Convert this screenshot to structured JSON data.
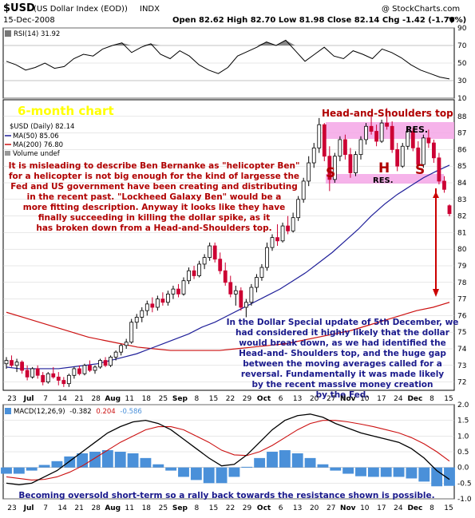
{
  "header": {
    "symbol": "$USD",
    "name": "(US Dollar Index (EOD))",
    "exchange": "INDX",
    "copyright": "@ StockCharts.com",
    "date": "15-Dec-2008",
    "quote": "Open 82.62  High 82.70  Low 81.98  Close 82.14  Chg -1.42 (-1.70%)",
    "quote_arrow": "▼"
  },
  "rsi_panel": {
    "label": "RSI(14) 31.92",
    "ticks": [
      "90",
      "70",
      "50",
      "30",
      "10"
    ]
  },
  "price_panel": {
    "legend": [
      "$USD (Daily) 82.14",
      "MA(50) 85.06",
      "MA(200) 76.80",
      "Volume undef"
    ],
    "ticks": [
      "88",
      "87",
      "86",
      "85",
      "84",
      "83",
      "82",
      "81",
      "80",
      "79",
      "78",
      "77",
      "76",
      "75",
      "74",
      "73",
      "72"
    ],
    "six_month": "6-month chart",
    "hs_title": "Head-and-Shoulders top",
    "res_top": "RES.",
    "res_bottom": "RES.",
    "s_left": "S",
    "h": "H",
    "s_right": "S",
    "left_text": [
      "It is misleading to describe Ben Bernanke as \"helicopter Ben\"",
      "for a helicopter is not big enough for the kind of largesse the",
      "Fed and US government have been creating and distributing",
      "in the recent past. \"Lockheed Galaxy Ben\" would be a",
      "more fitting description. Anyway it looks like they have",
      "finally succeeding in killing the dollar spike, as it",
      "has broken down from a Head-and-Shoulders top."
    ],
    "right_text": [
      "In the Dollar Special update of 5th December, we",
      "had considered it highly likely that the dollar",
      "would break down, as we had identified the",
      "Head-and- Shoulders top, and the huge gap",
      "between the moving averages called for a",
      "reversal. Fundamentally it was made likely",
      "by the recent massive money creation",
      "by the Fed."
    ]
  },
  "x_axis": [
    {
      "label": "23",
      "bold": false
    },
    {
      "label": "Jul",
      "bold": true
    },
    {
      "label": "7",
      "bold": false
    },
    {
      "label": "14",
      "bold": false
    },
    {
      "label": "21",
      "bold": false
    },
    {
      "label": "28",
      "bold": false
    },
    {
      "label": "Aug",
      "bold": true
    },
    {
      "label": "11",
      "bold": false
    },
    {
      "label": "18",
      "bold": false
    },
    {
      "label": "25",
      "bold": false
    },
    {
      "label": "Sep",
      "bold": true
    },
    {
      "label": "8",
      "bold": false
    },
    {
      "label": "15",
      "bold": false
    },
    {
      "label": "22",
      "bold": false
    },
    {
      "label": "29",
      "bold": false
    },
    {
      "label": "Oct",
      "bold": true
    },
    {
      "label": "6",
      "bold": false
    },
    {
      "label": "13",
      "bold": false
    },
    {
      "label": "20",
      "bold": false
    },
    {
      "label": "27",
      "bold": false
    },
    {
      "label": "Nov",
      "bold": true
    },
    {
      "label": "10",
      "bold": false
    },
    {
      "label": "17",
      "bold": false
    },
    {
      "label": "24",
      "bold": false
    },
    {
      "label": "Dec",
      "bold": true
    },
    {
      "label": "8",
      "bold": false
    },
    {
      "label": "15",
      "bold": false
    }
  ],
  "macd_panel": {
    "label_prefix": "MACD(12,26,9)",
    "label_macd": "-0.382",
    "label_signal": "0.204",
    "label_hist": "-0.586",
    "ticks": [
      "2.0",
      "1.5",
      "1.0",
      "0.5",
      "0.0",
      "-0.5",
      "-1.0"
    ],
    "bottom_text": "Becoming oversold short-term so a rally back towards the resistance shown is possible."
  },
  "colors": {
    "up_candle": "#000000",
    "down_candle": "#cc0033",
    "ma50": "#1f1f99",
    "ma200": "#cc1111",
    "panel_bg": "#ffffff",
    "grid": "#d0d0d0",
    "res_zone": "#f4a6e6",
    "rsi_fill": "#888888",
    "macd_hist": "#4a90d9",
    "signal": "#cc1111"
  },
  "chart_data": {
    "type": "candlestick",
    "title": "$USD (US Dollar Index (EOD)) INDX",
    "y_range": [
      71.5,
      89
    ],
    "candles": [
      {
        "o": 73.1,
        "h": 73.5,
        "l": 72.8,
        "c": 73.3
      },
      {
        "o": 73.3,
        "h": 73.6,
        "l": 72.9,
        "c": 73.0
      },
      {
        "o": 73.0,
        "h": 73.4,
        "l": 72.6,
        "c": 73.2
      },
      {
        "o": 73.2,
        "h": 73.3,
        "l": 72.5,
        "c": 72.7
      },
      {
        "o": 72.7,
        "h": 73.0,
        "l": 72.1,
        "c": 72.3
      },
      {
        "o": 72.3,
        "h": 72.9,
        "l": 72.2,
        "c": 72.8
      },
      {
        "o": 72.8,
        "h": 73.0,
        "l": 72.2,
        "c": 72.4
      },
      {
        "o": 72.4,
        "h": 72.6,
        "l": 71.8,
        "c": 72.0
      },
      {
        "o": 72.0,
        "h": 72.6,
        "l": 71.9,
        "c": 72.5
      },
      {
        "o": 72.5,
        "h": 72.9,
        "l": 72.2,
        "c": 72.3
      },
      {
        "o": 72.3,
        "h": 72.6,
        "l": 71.8,
        "c": 72.1
      },
      {
        "o": 72.1,
        "h": 72.3,
        "l": 71.7,
        "c": 71.9
      },
      {
        "o": 71.9,
        "h": 72.5,
        "l": 71.7,
        "c": 72.4
      },
      {
        "o": 72.4,
        "h": 72.9,
        "l": 72.2,
        "c": 72.8
      },
      {
        "o": 72.8,
        "h": 73.0,
        "l": 72.4,
        "c": 72.5
      },
      {
        "o": 72.5,
        "h": 73.1,
        "l": 72.4,
        "c": 73.0
      },
      {
        "o": 73.0,
        "h": 73.3,
        "l": 72.6,
        "c": 72.7
      },
      {
        "o": 72.7,
        "h": 73.0,
        "l": 72.5,
        "c": 72.9
      },
      {
        "o": 72.9,
        "h": 73.4,
        "l": 72.8,
        "c": 73.3
      },
      {
        "o": 73.3,
        "h": 73.5,
        "l": 72.9,
        "c": 73.0
      },
      {
        "o": 73.0,
        "h": 73.6,
        "l": 72.9,
        "c": 73.5
      },
      {
        "o": 73.5,
        "h": 73.9,
        "l": 73.3,
        "c": 73.8
      },
      {
        "o": 73.8,
        "h": 74.3,
        "l": 73.6,
        "c": 74.2
      },
      {
        "o": 74.2,
        "h": 74.6,
        "l": 74.0,
        "c": 74.4
      },
      {
        "o": 74.4,
        "h": 75.8,
        "l": 74.3,
        "c": 75.6
      },
      {
        "o": 75.6,
        "h": 76.1,
        "l": 75.2,
        "c": 75.9
      },
      {
        "o": 75.9,
        "h": 76.5,
        "l": 75.6,
        "c": 76.3
      },
      {
        "o": 76.3,
        "h": 76.9,
        "l": 76.0,
        "c": 76.7
      },
      {
        "o": 76.7,
        "h": 77.1,
        "l": 76.2,
        "c": 76.5
      },
      {
        "o": 76.5,
        "h": 77.2,
        "l": 76.3,
        "c": 77.0
      },
      {
        "o": 77.0,
        "h": 77.4,
        "l": 76.6,
        "c": 76.8
      },
      {
        "o": 76.8,
        "h": 77.5,
        "l": 76.6,
        "c": 77.3
      },
      {
        "o": 77.3,
        "h": 77.8,
        "l": 77.0,
        "c": 77.6
      },
      {
        "o": 77.6,
        "h": 77.9,
        "l": 77.1,
        "c": 77.3
      },
      {
        "o": 77.3,
        "h": 78.3,
        "l": 77.2,
        "c": 78.1
      },
      {
        "o": 78.1,
        "h": 78.9,
        "l": 77.9,
        "c": 78.7
      },
      {
        "o": 78.7,
        "h": 79.0,
        "l": 78.2,
        "c": 78.4
      },
      {
        "o": 78.4,
        "h": 79.3,
        "l": 78.3,
        "c": 79.1
      },
      {
        "o": 79.1,
        "h": 79.7,
        "l": 78.8,
        "c": 79.5
      },
      {
        "o": 79.5,
        "h": 80.4,
        "l": 79.3,
        "c": 80.2
      },
      {
        "o": 80.2,
        "h": 80.4,
        "l": 79.2,
        "c": 79.4
      },
      {
        "o": 79.4,
        "h": 79.8,
        "l": 78.5,
        "c": 78.7
      },
      {
        "o": 78.7,
        "h": 79.2,
        "l": 77.8,
        "c": 78.0
      },
      {
        "o": 78.0,
        "h": 78.4,
        "l": 77.1,
        "c": 77.3
      },
      {
        "o": 77.3,
        "h": 77.8,
        "l": 76.6,
        "c": 77.5
      },
      {
        "o": 77.5,
        "h": 77.7,
        "l": 76.3,
        "c": 76.5
      },
      {
        "o": 76.5,
        "h": 77.0,
        "l": 75.9,
        "c": 76.8
      },
      {
        "o": 76.8,
        "h": 77.9,
        "l": 76.6,
        "c": 77.7
      },
      {
        "o": 77.7,
        "h": 78.5,
        "l": 77.4,
        "c": 78.3
      },
      {
        "o": 78.3,
        "h": 79.1,
        "l": 78.1,
        "c": 78.9
      },
      {
        "o": 78.9,
        "h": 80.4,
        "l": 78.7,
        "c": 80.1
      },
      {
        "o": 80.1,
        "h": 80.9,
        "l": 79.9,
        "c": 80.7
      },
      {
        "o": 80.7,
        "h": 81.5,
        "l": 80.2,
        "c": 80.5
      },
      {
        "o": 80.5,
        "h": 81.6,
        "l": 80.4,
        "c": 81.4
      },
      {
        "o": 81.4,
        "h": 82.0,
        "l": 80.9,
        "c": 81.1
      },
      {
        "o": 81.1,
        "h": 82.2,
        "l": 81.0,
        "c": 81.9
      },
      {
        "o": 81.9,
        "h": 83.2,
        "l": 81.7,
        "c": 83.0
      },
      {
        "o": 83.0,
        "h": 84.3,
        "l": 82.8,
        "c": 84.1
      },
      {
        "o": 84.1,
        "h": 85.6,
        "l": 83.8,
        "c": 85.2
      },
      {
        "o": 85.2,
        "h": 86.4,
        "l": 84.9,
        "c": 86.1
      },
      {
        "o": 86.1,
        "h": 87.9,
        "l": 85.8,
        "c": 87.5
      },
      {
        "o": 87.5,
        "h": 87.6,
        "l": 85.3,
        "c": 85.6
      },
      {
        "o": 85.6,
        "h": 86.2,
        "l": 83.5,
        "c": 84.2
      },
      {
        "o": 84.2,
        "h": 85.8,
        "l": 84.0,
        "c": 85.6
      },
      {
        "o": 85.6,
        "h": 86.8,
        "l": 85.3,
        "c": 86.6
      },
      {
        "o": 86.6,
        "h": 86.9,
        "l": 85.4,
        "c": 85.7
      },
      {
        "o": 85.7,
        "h": 86.1,
        "l": 84.3,
        "c": 84.6
      },
      {
        "o": 84.6,
        "h": 85.9,
        "l": 84.4,
        "c": 85.7
      },
      {
        "o": 85.7,
        "h": 86.8,
        "l": 85.4,
        "c": 86.6
      },
      {
        "o": 86.6,
        "h": 87.6,
        "l": 86.3,
        "c": 87.4
      },
      {
        "o": 87.4,
        "h": 88.1,
        "l": 86.9,
        "c": 87.1
      },
      {
        "o": 87.1,
        "h": 87.5,
        "l": 86.2,
        "c": 86.5
      },
      {
        "o": 86.5,
        "h": 87.8,
        "l": 86.4,
        "c": 87.6
      },
      {
        "o": 87.6,
        "h": 88.5,
        "l": 87.2,
        "c": 87.4
      },
      {
        "o": 87.4,
        "h": 87.7,
        "l": 85.8,
        "c": 86.0
      },
      {
        "o": 86.0,
        "h": 86.4,
        "l": 84.7,
        "c": 85.0
      },
      {
        "o": 85.0,
        "h": 86.4,
        "l": 84.9,
        "c": 86.2
      },
      {
        "o": 86.2,
        "h": 87.4,
        "l": 86.0,
        "c": 87.1
      },
      {
        "o": 87.1,
        "h": 87.3,
        "l": 85.9,
        "c": 86.1
      },
      {
        "o": 86.1,
        "h": 86.5,
        "l": 84.8,
        "c": 85.1
      },
      {
        "o": 85.1,
        "h": 86.9,
        "l": 84.9,
        "c": 86.7
      },
      {
        "o": 86.7,
        "h": 87.2,
        "l": 86.1,
        "c": 86.4
      },
      {
        "o": 86.4,
        "h": 86.6,
        "l": 85.2,
        "c": 85.5
      },
      {
        "o": 85.5,
        "h": 85.8,
        "l": 83.9,
        "c": 84.1
      },
      {
        "o": 84.1,
        "h": 84.4,
        "l": 83.4,
        "c": 83.6
      },
      {
        "o": 82.62,
        "h": 82.7,
        "l": 81.98,
        "c": 82.14
      }
    ],
    "ma50": [
      72.9,
      72.8,
      72.8,
      72.8,
      72.8,
      72.9,
      73.0,
      73.1,
      73.3,
      73.5,
      73.7,
      74.0,
      74.3,
      74.6,
      74.9,
      75.3,
      75.6,
      76.0,
      76.4,
      76.8,
      77.2,
      77.6,
      78.1,
      78.6,
      79.2,
      79.8,
      80.5,
      81.2,
      82.0,
      82.7,
      83.3,
      83.8,
      84.3,
      84.7,
      85.06
    ],
    "ma200": [
      76.2,
      75.9,
      75.6,
      75.3,
      75.0,
      74.7,
      74.5,
      74.3,
      74.1,
      74.0,
      73.9,
      73.9,
      73.9,
      73.9,
      74.0,
      74.1,
      74.2,
      74.3,
      74.5,
      74.7,
      74.9,
      75.1,
      75.4,
      75.7,
      76.0,
      76.3,
      76.5,
      76.8
    ],
    "rsi": [
      52,
      48,
      42,
      45,
      50,
      44,
      46,
      55,
      60,
      58,
      66,
      70,
      73,
      62,
      68,
      72,
      60,
      55,
      64,
      58,
      48,
      42,
      38,
      45,
      58,
      63,
      68,
      74,
      70,
      76,
      64,
      52,
      60,
      68,
      58,
      55,
      64,
      60,
      55,
      66,
      62,
      56,
      48,
      42,
      38,
      34,
      31.92
    ],
    "macd": [
      -0.5,
      -0.55,
      -0.5,
      -0.3,
      -0.1,
      0.2,
      0.5,
      0.8,
      1.1,
      1.3,
      1.45,
      1.5,
      1.4,
      1.2,
      0.9,
      0.6,
      0.3,
      0.05,
      0.1,
      0.4,
      0.8,
      1.2,
      1.5,
      1.65,
      1.7,
      1.6,
      1.4,
      1.25,
      1.1,
      1.0,
      0.9,
      0.8,
      0.6,
      0.3,
      -0.1,
      -0.382
    ],
    "signal": [
      -0.3,
      -0.35,
      -0.4,
      -0.38,
      -0.3,
      -0.15,
      0.05,
      0.3,
      0.55,
      0.8,
      1.0,
      1.2,
      1.3,
      1.3,
      1.2,
      1.0,
      0.8,
      0.55,
      0.4,
      0.38,
      0.5,
      0.7,
      0.95,
      1.2,
      1.4,
      1.5,
      1.5,
      1.45,
      1.38,
      1.3,
      1.2,
      1.1,
      0.95,
      0.75,
      0.5,
      0.204
    ],
    "rsi_ylim": [
      10,
      90
    ],
    "macd_ylim": [
      -1.0,
      2.0
    ]
  }
}
